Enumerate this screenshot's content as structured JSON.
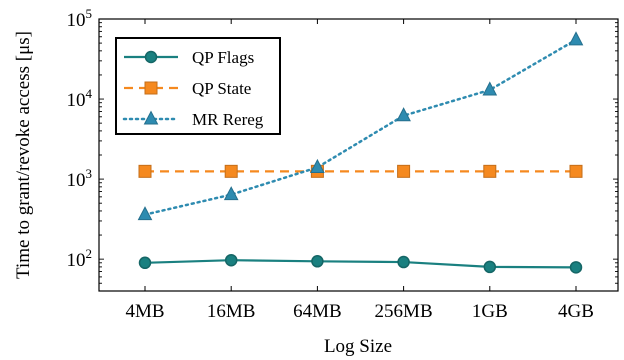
{
  "chart_data": {
    "type": "line",
    "xlabel": "Log Size",
    "ylabel": "Time to grant/revoke access [μs]",
    "categories": [
      "4MB",
      "16MB",
      "64MB",
      "256MB",
      "1GB",
      "4GB"
    ],
    "y_scale": "log",
    "ylim": [
      40,
      100000
    ],
    "y_ticks": [
      {
        "value": 100,
        "base": "10",
        "exp": "2"
      },
      {
        "value": 1000,
        "base": "10",
        "exp": "3"
      },
      {
        "value": 10000,
        "base": "10",
        "exp": "4"
      },
      {
        "value": 100000,
        "base": "10",
        "exp": "5"
      }
    ],
    "grid": false,
    "legend_position": "top-left",
    "series": [
      {
        "name": "QP Flags",
        "values": [
          90,
          97,
          94,
          92,
          80,
          79
        ],
        "color": "#1a8080",
        "marker": "circle",
        "dash": "solid"
      },
      {
        "name": "QP State",
        "values": [
          1250,
          1250,
          1250,
          1250,
          1250,
          1250
        ],
        "color": "#f5891f",
        "marker": "square",
        "dash": "dashed"
      },
      {
        "name": "MR Rereg",
        "values": [
          360,
          640,
          1400,
          6200,
          13000,
          55000
        ],
        "color": "#2e8bb0",
        "marker": "triangle",
        "dash": "dotted"
      }
    ]
  }
}
